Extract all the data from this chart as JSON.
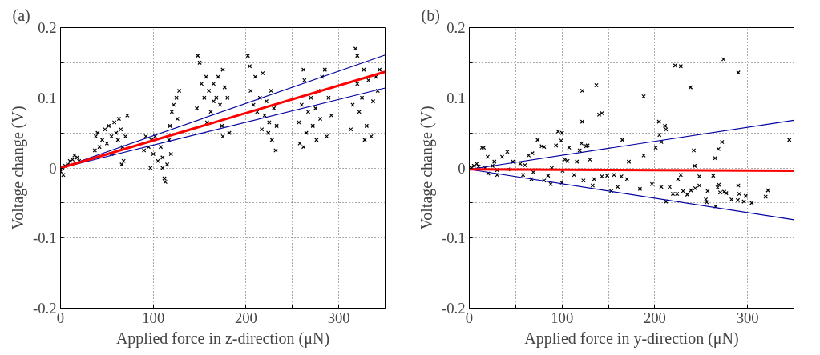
{
  "chart_data": [
    {
      "type": "scatter",
      "title": "(a)",
      "xlabel": "Applied force in z-direction (μN)",
      "ylabel": "Voltage change (V)",
      "xlim": [
        0,
        350
      ],
      "ylim": [
        -0.2,
        0.2
      ],
      "xticks": [
        0,
        {
          "value": 50,
          "label": null
        },
        100,
        {
          "value": 150,
          "label": null
        },
        200,
        {
          "value": 250,
          "label": null
        },
        300
      ],
      "yticks": [
        -0.2,
        {
          "value": -0.15,
          "label": null
        },
        -0.1,
        {
          "value": -0.05,
          "label": null
        },
        0,
        {
          "value": 0.05,
          "label": null
        },
        0.1,
        {
          "value": 0.15,
          "label": null
        },
        0.2
      ],
      "grid": true,
      "series": [
        {
          "marker": "cross",
          "color": "#000000",
          "x": [
            0,
            2,
            5,
            8,
            10,
            13,
            15,
            18,
            20,
            3,
            37,
            38,
            40,
            45,
            48,
            50,
            52,
            55,
            58,
            60,
            62,
            63,
            65,
            67,
            68,
            70,
            72,
            55,
            42,
            66,
            90,
            92,
            95,
            98,
            100,
            102,
            105,
            108,
            110,
            112,
            113,
            115,
            117,
            118,
            120,
            122,
            125,
            128,
            126,
            119,
            97,
            110,
            148,
            150,
            152,
            155,
            157,
            160,
            162,
            165,
            168,
            170,
            172,
            174,
            175,
            177,
            180,
            158,
            175,
            182,
            147,
            165,
            202,
            204,
            205,
            208,
            210,
            212,
            215,
            217,
            218,
            220,
            222,
            225,
            227,
            228,
            230,
            232,
            233,
            224,
            257,
            258,
            260,
            262,
            263,
            265,
            267,
            270,
            272,
            275,
            278,
            280,
            282,
            285,
            287,
            289,
            292,
            262,
            276,
            313,
            315,
            318,
            320,
            320,
            322,
            325,
            327,
            330,
            332,
            335,
            337,
            340,
            342,
            344,
            328
          ],
          "values": [
            -0.005,
            0,
            0.003,
            0.005,
            0.01,
            0.012,
            0.018,
            0.015,
            0.01,
            -0.01,
            0.025,
            0.045,
            0.05,
            0.04,
            0.055,
            0.035,
            0.06,
            0.045,
            0.065,
            0.05,
            0.04,
            0.07,
            0.055,
            0.03,
            0.01,
            0.045,
            0.075,
            0.02,
            0.03,
            0.005,
            0.025,
            0.045,
            0.03,
            0.04,
            0.02,
            0.045,
            0.01,
            0.03,
            0.0,
            -0.015,
            -0.02,
            0.005,
            0.04,
            0.06,
            0.08,
            0.09,
            0.1,
            0.11,
            0.07,
            0.02,
            0.0,
            0.015,
            0.16,
            0.15,
            0.12,
            0.1,
            0.13,
            0.11,
            0.08,
            0.12,
            0.1,
            0.13,
            0.09,
            0.06,
            0.14,
            0.115,
            0.1,
            0.065,
            0.045,
            0.05,
            0.085,
            0.095,
            0.16,
            0.145,
            0.11,
            0.09,
            0.13,
            0.08,
            0.1,
            0.055,
            0.135,
            0.075,
            0.095,
            0.065,
            0.11,
            0.04,
            0.085,
            0.025,
            0.06,
            0.05,
            0.065,
            0.035,
            0.09,
            0.14,
            0.125,
            0.05,
            0.08,
            0.1,
            0.06,
            0.085,
            0.11,
            0.07,
            0.13,
            0.14,
            0.045,
            0.1,
            0.075,
            0.03,
            0.04,
            0.055,
            0.09,
            0.17,
            0.16,
            0.12,
            0.08,
            0.1,
            0.14,
            0.06,
            0.125,
            0.045,
            0.095,
            0.13,
            0.11,
            0.14,
            0.04
          ]
        },
        {
          "type": "line",
          "color": "#0000a0",
          "x": [
            0,
            350
          ],
          "values": [
            0,
            0.161
          ]
        },
        {
          "type": "line",
          "color": "#0000a0",
          "x": [
            0,
            350
          ],
          "values": [
            0,
            0.114
          ]
        },
        {
          "type": "line",
          "color": "#ff0000",
          "x": [
            0,
            350
          ],
          "values": [
            0,
            0.137
          ]
        }
      ]
    },
    {
      "type": "scatter",
      "title": "(b)",
      "xlabel": "Applied force in y-direction (μN)",
      "ylabel": "Voltage change (V)",
      "xlim": [
        0,
        350
      ],
      "ylim": [
        -0.2,
        0.2
      ],
      "xticks": [
        0,
        {
          "value": 50,
          "label": null
        },
        100,
        {
          "value": 150,
          "label": null
        },
        200,
        {
          "value": 250,
          "label": null
        },
        300
      ],
      "yticks": [
        -0.2,
        {
          "value": -0.15,
          "label": null
        },
        -0.1,
        {
          "value": -0.05,
          "label": null
        },
        0,
        {
          "value": 0.05,
          "label": null
        },
        0.1,
        {
          "value": 0.15,
          "label": null
        },
        0.2
      ],
      "grid": true,
      "series": [
        {
          "marker": "cross",
          "color": "#000000",
          "x": [
            2,
            5,
            8,
            10,
            17,
            25,
            30,
            13.6,
            15.6,
            19.8,
            20.4,
            27,
            30,
            35.4,
            41,
            42,
            47,
            55,
            60,
            58,
            64,
            67,
            68,
            69,
            73.7,
            78,
            80.7,
            80.7,
            85,
            87.8,
            89,
            93.5,
            95.8,
            99,
            100,
            99.7,
            100.6,
            103,
            106,
            107.6,
            113,
            116,
            119,
            121.8,
            121.8,
            121,
            123,
            126,
            127.5,
            130,
            133,
            134.6,
            137,
            140,
            143,
            143,
            148.7,
            153,
            156,
            160,
            164,
            165,
            170,
            172,
            184,
            188,
            188,
            197,
            201,
            204.5,
            205,
            207,
            207,
            211,
            212,
            212,
            216,
            219.5,
            222,
            224,
            225,
            228,
            228,
            230.5,
            235,
            238.5,
            239,
            242,
            243,
            243.6,
            248,
            248,
            255,
            256,
            257,
            263,
            265,
            265.5,
            267.7,
            268.6,
            269,
            270.5,
            272.5,
            274,
            274.8,
            277,
            282.7,
            289.5,
            290,
            290,
            291,
            296,
            298,
            304.5,
            319.5,
            322,
            345
          ],
          "values": [
            0,
            0.003,
            0.006,
            0.002,
            0,
            0.003,
            -0.003,
            0.029,
            0.029,
            0.016,
            -0.008,
            0.009,
            -0.01,
            0.016,
            0.023,
            -0.002,
            0.009,
            0.006,
            0.004,
            -0.01,
            0.018,
            -0.016,
            0.021,
            -0.006,
            0.04,
            0.031,
            0.03,
            -0.018,
            -0.011,
            -0.023,
            0,
            0.032,
            0.052,
            0.039,
            0.05,
            -0.021,
            -0.004,
            0.012,
            0.01,
            0.029,
            -0.01,
            0.009,
            0.025,
            0.11,
            0.066,
            0.035,
            -0.018,
            0.031,
            0.032,
            0.012,
            -0.025,
            -0.016,
            0.118,
            0.076,
            0.078,
            -0.012,
            -0.011,
            -0.033,
            -0.01,
            -0.027,
            -0.012,
            0.04,
            -0.016,
            0.009,
            -0.03,
            0.102,
            0.018,
            -0.023,
            0.029,
            0.066,
            0.047,
            -0.027,
            0.037,
            0.06,
            -0.048,
            0.055,
            -0.027,
            -0.037,
            0.146,
            -0.037,
            -0.016,
            0.145,
            -0.01,
            -0.033,
            -0.038,
            0.115,
            -0.032,
            0.025,
            0.003,
            -0.029,
            -0.012,
            -0.025,
            -0.045,
            -0.049,
            -0.033,
            -0.011,
            0.014,
            -0.055,
            -0.028,
            0.027,
            -0.024,
            -0.035,
            0.037,
            0.155,
            -0.034,
            -0.036,
            -0.045,
            -0.046,
            0.136,
            -0.025,
            -0.037,
            -0.048,
            -0.04,
            -0.05,
            -0.041,
            -0.032,
            0.04
          ]
        },
        {
          "type": "line",
          "color": "#0000a0",
          "x": [
            0,
            350
          ],
          "values": [
            -0.002,
            0.068
          ]
        },
        {
          "type": "line",
          "color": "#0000a0",
          "x": [
            0,
            350
          ],
          "values": [
            -0.002,
            -0.074
          ]
        },
        {
          "type": "line",
          "color": "#ff0000",
          "x": [
            0,
            350
          ],
          "values": [
            -0.002,
            -0.004
          ]
        }
      ]
    }
  ]
}
